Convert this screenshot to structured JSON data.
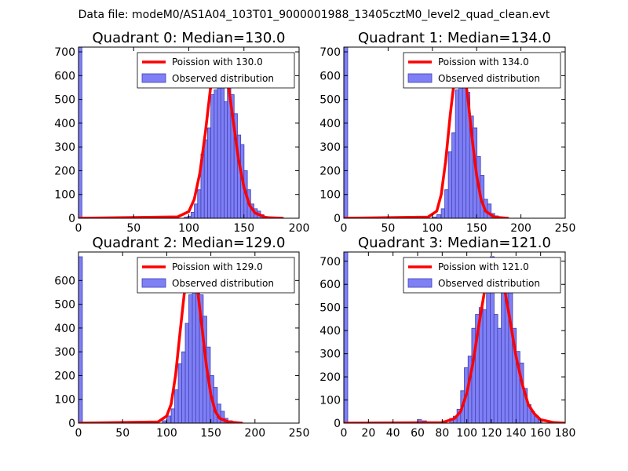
{
  "suptitle": "Data file: modeM0/AS1A04_103T01_9000001988_13405cztM0_level2_quad_clean.evt",
  "colors": {
    "bar_fill": "#7f7ff6",
    "bar_edge": "#3f3fb0",
    "poisson_line": "#ff0000"
  },
  "chart_data": [
    {
      "type": "bar",
      "title": "Quadrant 0: Median=130.0",
      "xlim": [
        0,
        200
      ],
      "ylim": [
        0,
        720
      ],
      "xticks": [
        0,
        50,
        100,
        150,
        200
      ],
      "yticks": [
        0,
        100,
        200,
        300,
        400,
        500,
        600,
        700
      ],
      "bin_width": 3.1,
      "legend": [
        "Poission with 130.0",
        "Observed distribution"
      ],
      "bins": [
        [
          0,
          720
        ],
        [
          96,
          5
        ],
        [
          99,
          8
        ],
        [
          102,
          25
        ],
        [
          105,
          60
        ],
        [
          108,
          120
        ],
        [
          111,
          270
        ],
        [
          114,
          330
        ],
        [
          117,
          380
        ],
        [
          120,
          520
        ],
        [
          123,
          540
        ],
        [
          126,
          550
        ],
        [
          129,
          680
        ],
        [
          132,
          490
        ],
        [
          135,
          570
        ],
        [
          138,
          520
        ],
        [
          141,
          440
        ],
        [
          144,
          350
        ],
        [
          147,
          310
        ],
        [
          150,
          200
        ],
        [
          153,
          120
        ],
        [
          156,
          60
        ],
        [
          159,
          40
        ],
        [
          162,
          30
        ],
        [
          165,
          15
        ],
        [
          168,
          8
        ],
        [
          171,
          5
        ]
      ],
      "poisson": [
        [
          0,
          0
        ],
        [
          90,
          6
        ],
        [
          100,
          28
        ],
        [
          105,
          80
        ],
        [
          110,
          190
        ],
        [
          115,
          360
        ],
        [
          120,
          560
        ],
        [
          125,
          690
        ],
        [
          130,
          690
        ],
        [
          135,
          590
        ],
        [
          140,
          420
        ],
        [
          145,
          250
        ],
        [
          150,
          130
        ],
        [
          155,
          55
        ],
        [
          160,
          22
        ],
        [
          170,
          3
        ],
        [
          185,
          0
        ]
      ]
    },
    {
      "type": "bar",
      "title": "Quadrant 1: Median=134.0",
      "xlim": [
        0,
        250
      ],
      "ylim": [
        0,
        720
      ],
      "xticks": [
        0,
        50,
        100,
        150,
        200,
        250
      ],
      "yticks": [
        0,
        100,
        200,
        300,
        400,
        500,
        600,
        700
      ],
      "bin_width": 4.4,
      "legend": [
        "Poission with 134.0",
        "Observed distribution"
      ],
      "bins": [
        [
          0,
          720
        ],
        [
          100,
          5
        ],
        [
          105,
          15
        ],
        [
          110,
          40
        ],
        [
          114,
          120
        ],
        [
          118,
          280
        ],
        [
          122,
          360
        ],
        [
          126,
          540
        ],
        [
          130,
          580
        ],
        [
          134,
          620
        ],
        [
          138,
          530
        ],
        [
          142,
          430
        ],
        [
          146,
          380
        ],
        [
          150,
          260
        ],
        [
          154,
          180
        ],
        [
          158,
          80
        ],
        [
          162,
          60
        ],
        [
          166,
          20
        ],
        [
          170,
          10
        ]
      ],
      "poisson": [
        [
          0,
          0
        ],
        [
          95,
          5
        ],
        [
          105,
          30
        ],
        [
          110,
          100
        ],
        [
          115,
          240
        ],
        [
          120,
          430
        ],
        [
          125,
          590
        ],
        [
          130,
          670
        ],
        [
          135,
          640
        ],
        [
          140,
          510
        ],
        [
          145,
          330
        ],
        [
          150,
          180
        ],
        [
          155,
          80
        ],
        [
          160,
          30
        ],
        [
          170,
          5
        ],
        [
          185,
          0
        ]
      ]
    },
    {
      "type": "bar",
      "title": "Quadrant 2: Median=129.0",
      "xlim": [
        0,
        250
      ],
      "ylim": [
        0,
        720
      ],
      "xticks": [
        0,
        50,
        100,
        150,
        200,
        250
      ],
      "yticks": [
        0,
        100,
        200,
        300,
        400,
        500,
        600
      ],
      "bin_width": 4.4,
      "legend": [
        "Poission with 129.0",
        "Observed distribution"
      ],
      "bins": [
        [
          0,
          700
        ],
        [
          95,
          10
        ],
        [
          100,
          30
        ],
        [
          105,
          60
        ],
        [
          109,
          140
        ],
        [
          113,
          250
        ],
        [
          117,
          300
        ],
        [
          121,
          420
        ],
        [
          125,
          540
        ],
        [
          129,
          570
        ],
        [
          133,
          660
        ],
        [
          137,
          540
        ],
        [
          141,
          450
        ],
        [
          145,
          320
        ],
        [
          149,
          200
        ],
        [
          153,
          150
        ],
        [
          157,
          80
        ],
        [
          161,
          50
        ],
        [
          165,
          20
        ],
        [
          170,
          10
        ]
      ],
      "poisson": [
        [
          0,
          0
        ],
        [
          90,
          5
        ],
        [
          100,
          30
        ],
        [
          105,
          80
        ],
        [
          110,
          200
        ],
        [
          115,
          380
        ],
        [
          120,
          550
        ],
        [
          125,
          660
        ],
        [
          130,
          660
        ],
        [
          135,
          560
        ],
        [
          140,
          400
        ],
        [
          145,
          240
        ],
        [
          150,
          120
        ],
        [
          155,
          50
        ],
        [
          160,
          20
        ],
        [
          170,
          5
        ],
        [
          185,
          0
        ]
      ]
    },
    {
      "type": "bar",
      "title": "Quadrant 3: Median=121.0",
      "xlim": [
        0,
        180
      ],
      "ylim": [
        0,
        740
      ],
      "xticks": [
        0,
        20,
        40,
        60,
        80,
        100,
        120,
        140,
        160,
        180
      ],
      "yticks": [
        0,
        100,
        200,
        300,
        400,
        500,
        600,
        700
      ],
      "bin_width": 3.2,
      "legend": [
        "Poission with 121.0",
        "Observed distribution"
      ],
      "bins": [
        [
          0,
          740
        ],
        [
          60,
          15
        ],
        [
          64,
          10
        ],
        [
          80,
          10
        ],
        [
          86,
          20
        ],
        [
          89,
          30
        ],
        [
          92,
          60
        ],
        [
          95,
          140
        ],
        [
          98,
          240
        ],
        [
          101,
          290
        ],
        [
          104,
          410
        ],
        [
          107,
          470
        ],
        [
          110,
          500
        ],
        [
          113,
          490
        ],
        [
          116,
          640
        ],
        [
          119,
          720
        ],
        [
          122,
          470
        ],
        [
          125,
          410
        ],
        [
          128,
          610
        ],
        [
          131,
          610
        ],
        [
          134,
          600
        ],
        [
          137,
          410
        ],
        [
          140,
          310
        ],
        [
          143,
          260
        ],
        [
          146,
          150
        ],
        [
          149,
          80
        ],
        [
          152,
          50
        ],
        [
          155,
          30
        ],
        [
          158,
          15
        ]
      ],
      "poisson": [
        [
          0,
          0
        ],
        [
          80,
          2
        ],
        [
          90,
          20
        ],
        [
          95,
          50
        ],
        [
          100,
          130
        ],
        [
          105,
          260
        ],
        [
          110,
          430
        ],
        [
          115,
          590
        ],
        [
          120,
          700
        ],
        [
          125,
          700
        ],
        [
          130,
          600
        ],
        [
          135,
          450
        ],
        [
          140,
          290
        ],
        [
          145,
          170
        ],
        [
          150,
          80
        ],
        [
          155,
          40
        ],
        [
          160,
          15
        ],
        [
          170,
          3
        ],
        [
          180,
          0
        ]
      ]
    }
  ]
}
